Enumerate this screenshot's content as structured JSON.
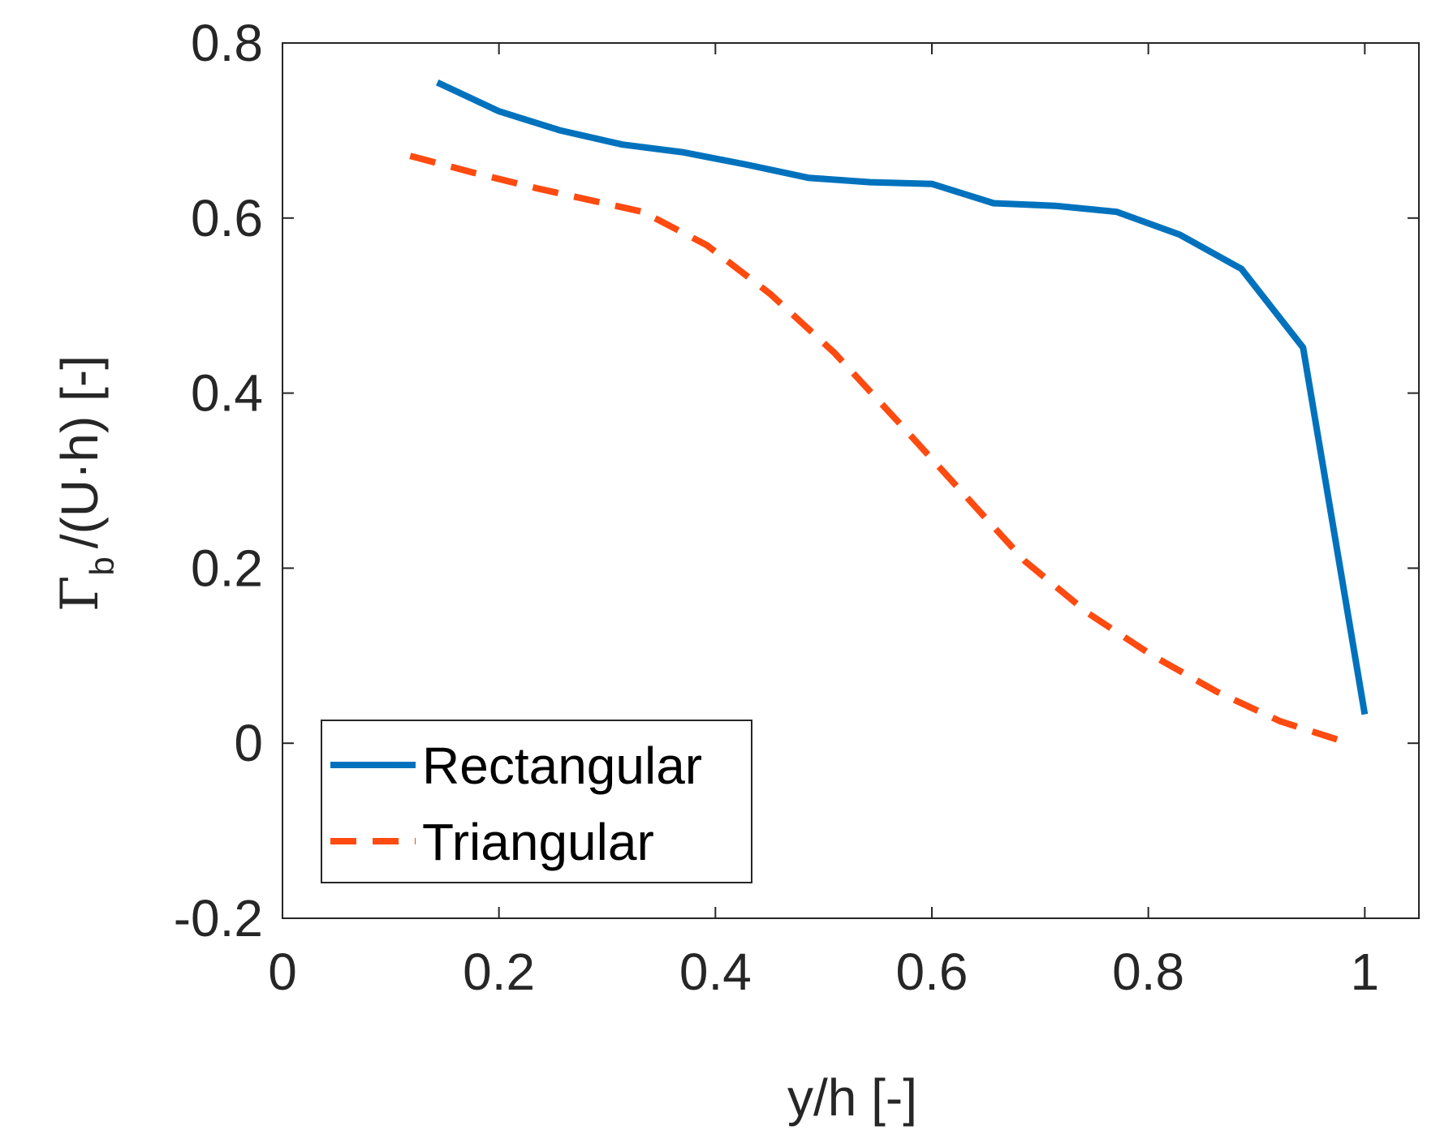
{
  "chart_data": {
    "type": "line",
    "title": "",
    "xlabel": "y/h [-]",
    "ylabel": {
      "symbol": "Γ",
      "subscript": "b",
      "rest": "/(U·h) [-]"
    },
    "xlim": [
      0,
      1.05
    ],
    "ylim": [
      -0.2,
      0.8
    ],
    "xticks": [
      0,
      0.2,
      0.4,
      0.6,
      0.8,
      1
    ],
    "xtick_labels": [
      "0",
      "0.2",
      "0.4",
      "0.6",
      "0.8",
      "1"
    ],
    "yticks": [
      -0.2,
      0,
      0.2,
      0.4,
      0.6,
      0.8
    ],
    "ytick_labels": [
      "-0.2",
      "0",
      "0.2",
      "0.4",
      "0.6",
      "0.8"
    ],
    "grid": false,
    "legend_position": "bottom-left",
    "series": [
      {
        "name": "Rectangular",
        "color": "#0072BD",
        "style": "solid",
        "x": [
          0.143,
          0.2,
          0.257,
          0.314,
          0.371,
          0.429,
          0.486,
          0.543,
          0.6,
          0.657,
          0.714,
          0.771,
          0.829,
          0.886,
          0.943,
          1.0
        ],
        "y": [
          0.755,
          0.722,
          0.7,
          0.684,
          0.675,
          0.661,
          0.646,
          0.641,
          0.639,
          0.617,
          0.614,
          0.607,
          0.581,
          0.542,
          0.452,
          0.033
        ]
      },
      {
        "name": "Triangular",
        "color": "#FF4A10",
        "style": "dashed",
        "x": [
          0.118,
          0.176,
          0.235,
          0.333,
          0.392,
          0.451,
          0.51,
          0.569,
          0.627,
          0.686,
          0.745,
          0.804,
          0.863,
          0.922,
          0.98
        ],
        "y": [
          0.671,
          0.652,
          0.634,
          0.607,
          0.569,
          0.513,
          0.446,
          0.367,
          0.288,
          0.208,
          0.148,
          0.1,
          0.059,
          0.025,
          0.002
        ]
      }
    ]
  }
}
